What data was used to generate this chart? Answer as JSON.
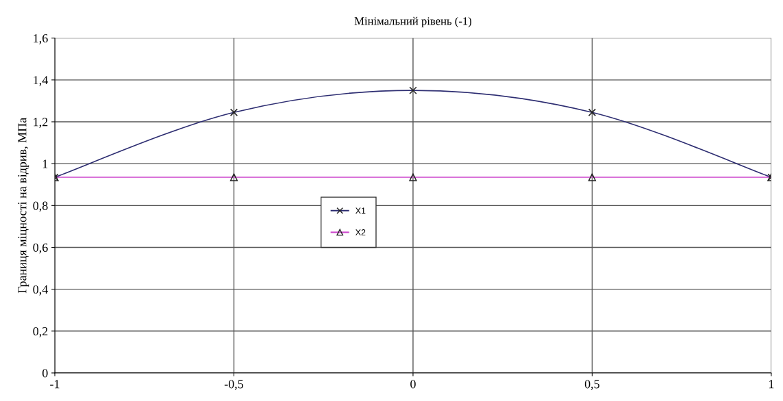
{
  "chart_data": {
    "type": "line",
    "title": "Мінімальний рівень (-1)",
    "ylabel": "Границя міцності на відрив, МПа",
    "x": [
      -1,
      -0.5,
      0,
      0.5,
      1
    ],
    "series": [
      {
        "name": "X1",
        "color": "#2e2e72",
        "marker": "cross",
        "values": [
          0.935,
          1.245,
          1.35,
          1.245,
          0.935
        ]
      },
      {
        "name": "X2",
        "color": "#cc44cc",
        "marker": "triangle",
        "values": [
          0.935,
          0.935,
          0.935,
          0.935,
          0.935
        ]
      }
    ],
    "xlim": [
      -1,
      1
    ],
    "xticks": [
      {
        "value": -1,
        "label": "-1"
      },
      {
        "value": -0.5,
        "label": "-0,5"
      },
      {
        "value": 0,
        "label": "0"
      },
      {
        "value": 0.5,
        "label": "0,5"
      },
      {
        "value": 1,
        "label": "1"
      }
    ],
    "ylim": [
      0,
      1.6
    ],
    "yticks": [
      {
        "value": 0,
        "label": "0"
      },
      {
        "value": 0.2,
        "label": "0,2"
      },
      {
        "value": 0.4,
        "label": "0,4"
      },
      {
        "value": 0.6,
        "label": "0,6"
      },
      {
        "value": 0.8,
        "label": "0,8"
      },
      {
        "value": 1,
        "label": "1"
      },
      {
        "value": 1.2,
        "label": "1,2"
      },
      {
        "value": 1.4,
        "label": "1,4"
      },
      {
        "value": 1.6,
        "label": "1,6"
      }
    ],
    "grid": true,
    "legend": "center",
    "line_style": "solid"
  }
}
